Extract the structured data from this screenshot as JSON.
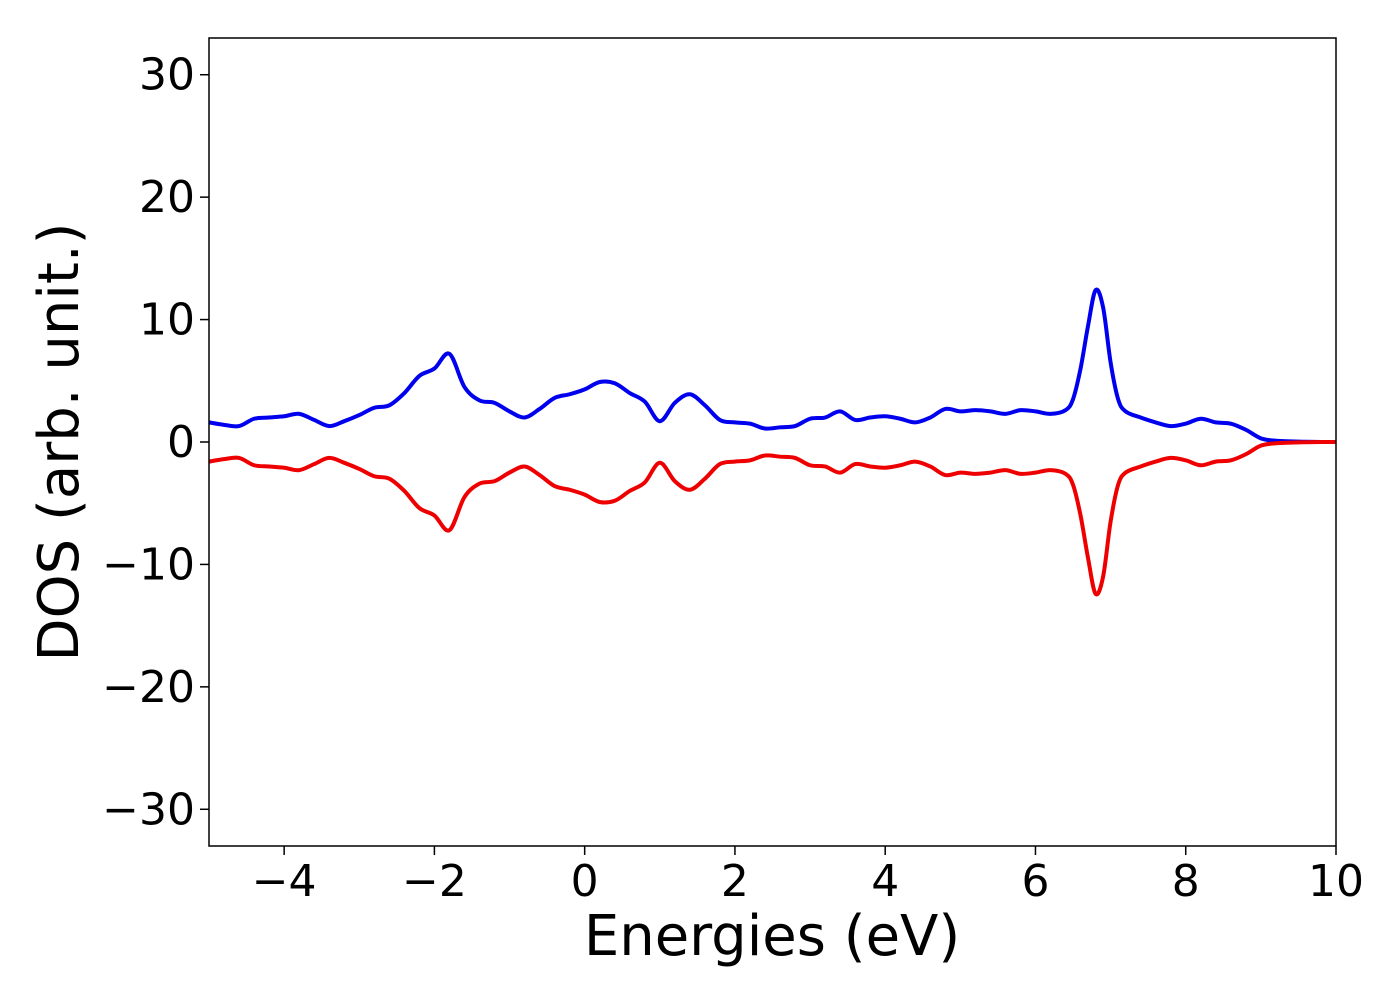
{
  "chart_data": {
    "type": "line",
    "title": "",
    "xlabel": "Energies (eV)",
    "ylabel": "DOS (arb. unit.)",
    "xlim": [
      -5,
      10
    ],
    "ylim": [
      -33,
      33
    ],
    "xticks": [
      -4,
      -2,
      0,
      2,
      4,
      6,
      8,
      10
    ],
    "xtick_labels": [
      "−4",
      "−2",
      "0",
      "2",
      "4",
      "6",
      "8",
      "10"
    ],
    "yticks": [
      -30,
      -20,
      -10,
      0,
      10,
      20,
      30
    ],
    "ytick_labels": [
      "−30",
      "−20",
      "−10",
      "0",
      "10",
      "20",
      "30"
    ],
    "grid": false,
    "legend": "none",
    "x": [
      -5.0,
      -4.8,
      -4.6,
      -4.4,
      -4.2,
      -4.0,
      -3.8,
      -3.6,
      -3.4,
      -3.2,
      -3.0,
      -2.8,
      -2.6,
      -2.4,
      -2.2,
      -2.0,
      -1.8,
      -1.6,
      -1.4,
      -1.2,
      -1.0,
      -0.8,
      -0.6,
      -0.4,
      -0.2,
      0.0,
      0.2,
      0.4,
      0.6,
      0.8,
      1.0,
      1.2,
      1.4,
      1.6,
      1.8,
      2.0,
      2.2,
      2.4,
      2.6,
      2.8,
      3.0,
      3.2,
      3.4,
      3.6,
      3.8,
      4.0,
      4.2,
      4.4,
      4.6,
      4.8,
      5.0,
      5.2,
      5.4,
      5.6,
      5.8,
      6.0,
      6.2,
      6.4,
      6.5,
      6.6,
      6.7,
      6.8,
      6.9,
      7.0,
      7.1,
      7.2,
      7.4,
      7.6,
      7.8,
      8.0,
      8.2,
      8.4,
      8.6,
      8.8,
      9.0,
      9.2,
      9.4,
      9.6,
      9.8,
      10.0
    ],
    "series": [
      {
        "color": "#0000ee",
        "values": [
          1.6,
          1.4,
          1.3,
          1.9,
          2.0,
          2.1,
          2.3,
          1.8,
          1.3,
          1.7,
          2.2,
          2.8,
          3.0,
          4.0,
          5.4,
          6.0,
          7.2,
          4.5,
          3.4,
          3.2,
          2.5,
          2.0,
          2.7,
          3.6,
          3.9,
          4.3,
          4.9,
          4.8,
          4.0,
          3.3,
          1.7,
          3.2,
          3.9,
          3.0,
          1.8,
          1.6,
          1.5,
          1.1,
          1.2,
          1.3,
          1.9,
          2.0,
          2.5,
          1.8,
          2.0,
          2.1,
          1.9,
          1.6,
          2.0,
          2.7,
          2.5,
          2.6,
          2.5,
          2.3,
          2.6,
          2.5,
          2.3,
          2.6,
          3.5,
          6.0,
          9.5,
          12.4,
          11.0,
          6.5,
          3.5,
          2.5,
          2.0,
          1.6,
          1.3,
          1.5,
          1.9,
          1.6,
          1.5,
          1.0,
          0.3,
          0.1,
          0.05,
          0.02,
          0.0,
          0.0
        ]
      },
      {
        "color": "#ee0000",
        "values": [
          -1.6,
          -1.4,
          -1.3,
          -1.9,
          -2.0,
          -2.1,
          -2.3,
          -1.8,
          -1.3,
          -1.7,
          -2.2,
          -2.8,
          -3.0,
          -4.0,
          -5.4,
          -6.0,
          -7.2,
          -4.5,
          -3.4,
          -3.2,
          -2.5,
          -2.0,
          -2.7,
          -3.6,
          -3.9,
          -4.3,
          -4.9,
          -4.8,
          -4.0,
          -3.3,
          -1.7,
          -3.2,
          -3.9,
          -3.0,
          -1.8,
          -1.6,
          -1.5,
          -1.1,
          -1.2,
          -1.3,
          -1.9,
          -2.0,
          -2.5,
          -1.8,
          -2.0,
          -2.1,
          -1.9,
          -1.6,
          -2.0,
          -2.7,
          -2.5,
          -2.6,
          -2.5,
          -2.3,
          -2.6,
          -2.5,
          -2.3,
          -2.6,
          -3.5,
          -6.0,
          -9.5,
          -12.4,
          -11.0,
          -6.5,
          -3.5,
          -2.5,
          -2.0,
          -1.6,
          -1.3,
          -1.5,
          -1.9,
          -1.6,
          -1.5,
          -1.0,
          -0.3,
          -0.1,
          -0.05,
          -0.02,
          0.0,
          0.0
        ]
      }
    ]
  }
}
